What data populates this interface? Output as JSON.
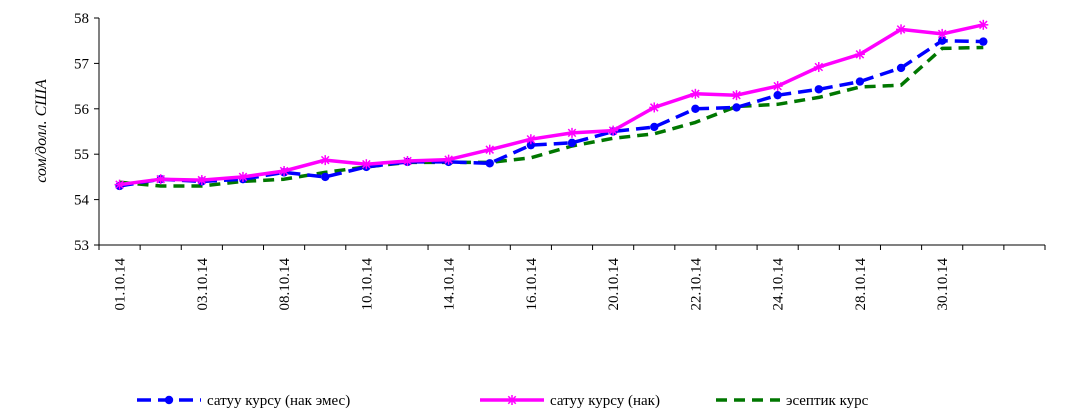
{
  "chart_data": {
    "type": "line",
    "ylabel": "сом/долл. США",
    "ylim": [
      53,
      58
    ],
    "yticks": [
      53,
      54,
      55,
      56,
      57,
      58
    ],
    "x_tick_labels": [
      "01.10.14",
      "03.10.14",
      "08.10.14",
      "10.10.14",
      "14.10.14",
      "16.10.14",
      "20.10.14",
      "22.10.14",
      "24.10.14",
      "28.10.14",
      "30.10.14"
    ],
    "x_count": 23,
    "grid": false,
    "legend_position": "bottom",
    "series": [
      {
        "name": "сатуу курсу (нак эмес)",
        "color": "#0000FF",
        "marker": "circle",
        "dash": "long-dash",
        "values": [
          54.3,
          54.45,
          54.4,
          54.45,
          54.6,
          54.5,
          54.72,
          54.83,
          54.83,
          54.8,
          55.2,
          55.25,
          55.5,
          55.6,
          56.0,
          56.03,
          56.3,
          56.43,
          56.6,
          56.9,
          57.5,
          57.48,
          null
        ]
      },
      {
        "name": "сатуу курсу  (нак)",
        "color": "#FF00FF",
        "marker": "asterisk",
        "dash": "solid",
        "values": [
          54.33,
          54.45,
          54.43,
          54.5,
          54.63,
          54.87,
          54.78,
          54.85,
          54.88,
          55.1,
          55.33,
          55.47,
          55.52,
          56.03,
          56.33,
          56.3,
          56.5,
          56.92,
          57.2,
          57.75,
          57.65,
          57.85,
          null
        ]
      },
      {
        "name": "эсептик курс",
        "color": "#007700",
        "marker": "none",
        "dash": "dash",
        "values": [
          54.38,
          54.3,
          54.3,
          54.4,
          54.45,
          54.6,
          54.72,
          54.82,
          54.82,
          54.82,
          54.92,
          55.18,
          55.35,
          55.45,
          55.7,
          56.05,
          56.1,
          56.25,
          56.48,
          56.52,
          57.33,
          57.35,
          null
        ]
      }
    ]
  }
}
